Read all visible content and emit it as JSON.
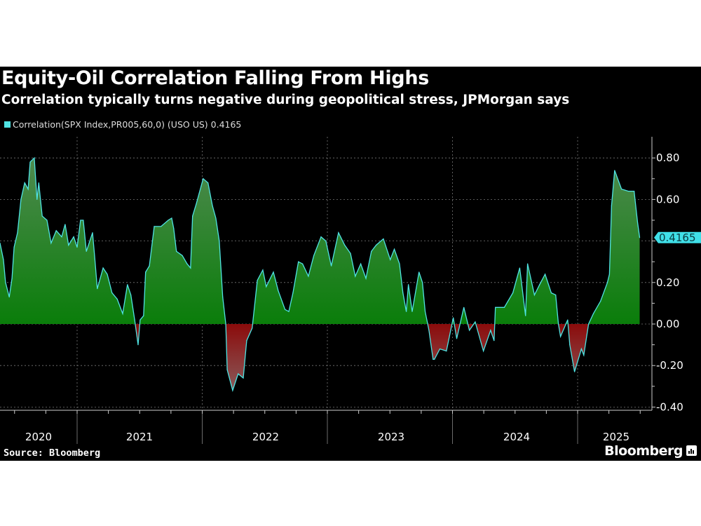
{
  "header": {
    "title": "Equity-Oil Correlation Falling From Highs",
    "subtitle": "Correlation typically turns negative during geopolitical stress, JPMorgan says"
  },
  "footer": {
    "source": "Source: Bloomberg",
    "brand": "Bloomberg"
  },
  "chart_data": {
    "type": "area",
    "title": "Equity-Oil Correlation Falling From Highs",
    "subtitle": "Correlation typically turns negative during geopolitical stress, JPMorgan says",
    "legend": {
      "label": "Correlation(SPX Index,PR005,60,0) (USO US) 0.4165",
      "placement": "top-left"
    },
    "colors": {
      "line": "#4fe3e3",
      "positive_fill": "#0a7d0a",
      "negative_fill": "#8b0b0b",
      "background": "#000000",
      "last_value_tag": "#40e0e8"
    },
    "last_value": "0.4165",
    "y_axis": {
      "side": "right",
      "ylim": [
        -0.42,
        0.9
      ],
      "ticks": [
        0.8,
        0.6,
        0.4,
        0.2,
        0.0,
        -0.2,
        -0.4
      ],
      "tick_labels": [
        "0.80",
        "0.60",
        "",
        "0.20",
        "0.00",
        "-0.20",
        "-0.40"
      ]
    },
    "x_axis": {
      "tick_labels": [
        "2020",
        "2021",
        "2022",
        "2023",
        "2024",
        "2025"
      ]
    },
    "grid": true,
    "series": [
      {
        "name": "Correlation(SPX Index,PR005,60,0) (USO US)",
        "points": [
          [
            "2020-05-21",
            0.39
          ],
          [
            "2020-05-31",
            0.31
          ],
          [
            "2020-06-06",
            0.2
          ],
          [
            "2020-06-17",
            0.13
          ],
          [
            "2020-06-25",
            0.22
          ],
          [
            "2020-07-01",
            0.37
          ],
          [
            "2020-07-11",
            0.44
          ],
          [
            "2020-07-21",
            0.6
          ],
          [
            "2020-08-01",
            0.68
          ],
          [
            "2020-08-11",
            0.65
          ],
          [
            "2020-08-17",
            0.78
          ],
          [
            "2020-08-29",
            0.8
          ],
          [
            "2020-09-06",
            0.6
          ],
          [
            "2020-09-11",
            0.68
          ],
          [
            "2020-09-21",
            0.52
          ],
          [
            "2020-10-05",
            0.5
          ],
          [
            "2020-10-17",
            0.39
          ],
          [
            "2020-11-01",
            0.45
          ],
          [
            "2020-11-17",
            0.42
          ],
          [
            "2020-11-27",
            0.48
          ],
          [
            "2020-12-07",
            0.38
          ],
          [
            "2020-12-22",
            0.42
          ],
          [
            "2021-01-01",
            0.37
          ],
          [
            "2021-01-11",
            0.5
          ],
          [
            "2021-01-19",
            0.5
          ],
          [
            "2021-01-28",
            0.35
          ],
          [
            "2021-02-15",
            0.44
          ],
          [
            "2021-02-21",
            0.33
          ],
          [
            "2021-03-01",
            0.17
          ],
          [
            "2021-03-18",
            0.27
          ],
          [
            "2021-03-30",
            0.24
          ],
          [
            "2021-04-13",
            0.15
          ],
          [
            "2021-04-28",
            0.12
          ],
          [
            "2021-05-14",
            0.05
          ],
          [
            "2021-05-28",
            0.19
          ],
          [
            "2021-06-07",
            0.14
          ],
          [
            "2021-06-18",
            0.02
          ],
          [
            "2021-06-28",
            -0.1
          ],
          [
            "2021-07-04",
            0.02
          ],
          [
            "2021-07-14",
            0.04
          ],
          [
            "2021-07-20",
            0.25
          ],
          [
            "2021-07-31",
            0.28
          ],
          [
            "2021-08-14",
            0.47
          ],
          [
            "2021-09-03",
            0.47
          ],
          [
            "2021-09-24",
            0.5
          ],
          [
            "2021-10-04",
            0.51
          ],
          [
            "2021-10-10",
            0.46
          ],
          [
            "2021-10-18",
            0.35
          ],
          [
            "2021-11-04",
            0.33
          ],
          [
            "2021-11-18",
            0.29
          ],
          [
            "2021-11-28",
            0.27
          ],
          [
            "2021-12-04",
            0.52
          ],
          [
            "2021-12-15",
            0.58
          ],
          [
            "2022-01-04",
            0.7
          ],
          [
            "2022-01-18",
            0.68
          ],
          [
            "2022-01-31",
            0.57
          ],
          [
            "2022-02-10",
            0.51
          ],
          [
            "2022-02-20",
            0.4
          ],
          [
            "2022-03-02",
            0.13
          ],
          [
            "2022-03-11",
            0.0
          ],
          [
            "2022-03-15",
            -0.22
          ],
          [
            "2022-03-31",
            -0.32
          ],
          [
            "2022-04-16",
            -0.24
          ],
          [
            "2022-05-01",
            -0.26
          ],
          [
            "2022-05-11",
            -0.08
          ],
          [
            "2022-05-27",
            -0.02
          ],
          [
            "2022-06-11",
            0.21
          ],
          [
            "2022-06-27",
            0.26
          ],
          [
            "2022-07-07",
            0.18
          ],
          [
            "2022-07-28",
            0.25
          ],
          [
            "2022-08-11",
            0.16
          ],
          [
            "2022-08-31",
            0.07
          ],
          [
            "2022-09-11",
            0.06
          ],
          [
            "2022-09-23",
            0.15
          ],
          [
            "2022-10-09",
            0.3
          ],
          [
            "2022-10-21",
            0.29
          ],
          [
            "2022-11-07",
            0.23
          ],
          [
            "2022-11-23",
            0.33
          ],
          [
            "2022-12-14",
            0.42
          ],
          [
            "2022-12-28",
            0.4
          ],
          [
            "2023-01-13",
            0.28
          ],
          [
            "2023-02-03",
            0.44
          ],
          [
            "2023-02-21",
            0.38
          ],
          [
            "2023-03-10",
            0.34
          ],
          [
            "2023-03-24",
            0.23
          ],
          [
            "2023-04-09",
            0.29
          ],
          [
            "2023-04-24",
            0.22
          ],
          [
            "2023-05-10",
            0.35
          ],
          [
            "2023-05-24",
            0.38
          ],
          [
            "2023-06-14",
            0.41
          ],
          [
            "2023-07-04",
            0.31
          ],
          [
            "2023-07-16",
            0.36
          ],
          [
            "2023-07-31",
            0.29
          ],
          [
            "2023-08-10",
            0.15
          ],
          [
            "2023-08-20",
            0.06
          ],
          [
            "2023-08-26",
            0.19
          ],
          [
            "2023-09-06",
            0.06
          ],
          [
            "2023-09-26",
            0.25
          ],
          [
            "2023-10-06",
            0.2
          ],
          [
            "2023-10-14",
            0.06
          ],
          [
            "2023-10-25",
            -0.03
          ],
          [
            "2023-11-06",
            -0.17
          ],
          [
            "2023-11-10",
            -0.17
          ],
          [
            "2023-11-26",
            -0.12
          ],
          [
            "2023-12-15",
            -0.13
          ],
          [
            "2024-01-04",
            0.03
          ],
          [
            "2024-01-14",
            -0.07
          ],
          [
            "2024-02-04",
            0.08
          ],
          [
            "2024-02-20",
            -0.03
          ],
          [
            "2024-03-08",
            0.01
          ],
          [
            "2024-04-01",
            -0.13
          ],
          [
            "2024-04-22",
            -0.03
          ],
          [
            "2024-05-02",
            -0.08
          ],
          [
            "2024-05-06",
            0.08
          ],
          [
            "2024-06-01",
            0.08
          ],
          [
            "2024-06-26",
            0.15
          ],
          [
            "2024-07-16",
            0.27
          ],
          [
            "2024-08-02",
            0.04
          ],
          [
            "2024-08-08",
            0.29
          ],
          [
            "2024-08-28",
            0.14
          ],
          [
            "2024-09-12",
            0.19
          ],
          [
            "2024-09-28",
            0.24
          ],
          [
            "2024-10-16",
            0.15
          ],
          [
            "2024-10-29",
            0.14
          ],
          [
            "2024-11-06",
            0.0
          ],
          [
            "2024-11-12",
            -0.06
          ],
          [
            "2024-12-03",
            0.02
          ],
          [
            "2024-12-09",
            -0.1
          ],
          [
            "2024-12-23",
            -0.23
          ],
          [
            "2025-01-12",
            -0.12
          ],
          [
            "2025-01-19",
            -0.15
          ],
          [
            "2025-02-02",
            0.0
          ],
          [
            "2025-02-16",
            0.05
          ],
          [
            "2025-03-09",
            0.11
          ],
          [
            "2025-03-29",
            0.2
          ],
          [
            "2025-04-04",
            0.24
          ],
          [
            "2025-04-10",
            0.57
          ],
          [
            "2025-04-19",
            0.74
          ],
          [
            "2025-05-09",
            0.65
          ],
          [
            "2025-05-29",
            0.64
          ],
          [
            "2025-06-15",
            0.64
          ],
          [
            "2025-06-25",
            0.49
          ],
          [
            "2025-07-01",
            0.4165
          ]
        ]
      }
    ]
  }
}
